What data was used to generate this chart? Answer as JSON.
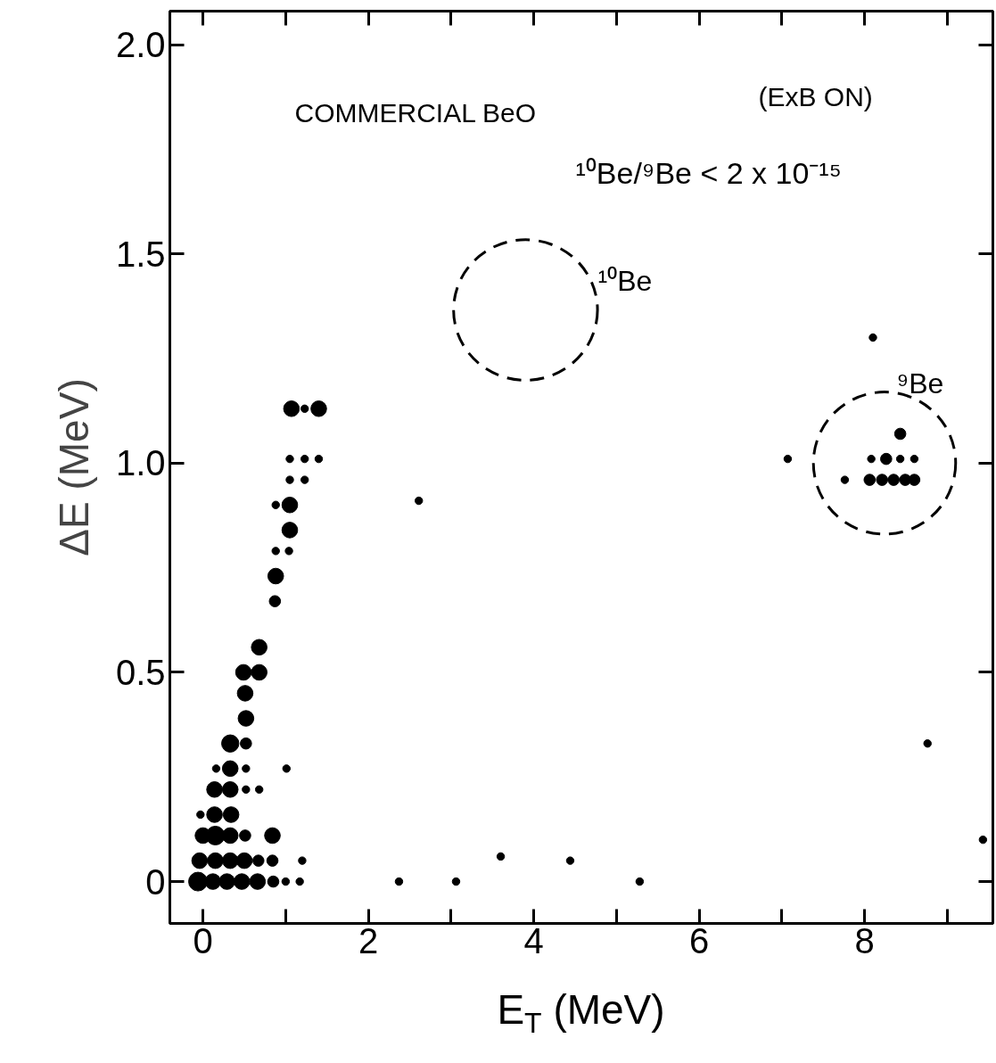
{
  "chart_data": {
    "type": "bubble",
    "xlabel": "E$_{T}$ (MeV)",
    "ylabel": "ΔE (MeV)",
    "xlim": [
      -0.4,
      9.55
    ],
    "ylim": [
      -0.1,
      2.08
    ],
    "xticks": [
      0,
      {
        "value": 1,
        "label": null
      },
      2,
      {
        "value": 3,
        "label": null
      },
      4,
      {
        "value": 5,
        "label": null
      },
      6,
      {
        "value": 7,
        "label": null
      },
      8,
      {
        "value": 9,
        "label": null
      }
    ],
    "yticks": [
      0,
      0.5,
      {
        "value": 1,
        "label": "1.0"
      },
      1.5,
      {
        "value": 2,
        "label": "2.0"
      }
    ],
    "annotations": [
      "COMMERCIAL BeO",
      "(ExB ON)",
      "¹⁰Be/⁹Be < 2 x 10⁻¹⁵",
      "¹⁰Be",
      "⁹Be"
    ],
    "series": [
      {
        "color": "#000000",
        "marker": "circle",
        "x": [
          1.07,
          1.23,
          1.4,
          1.05,
          1.23,
          1.4,
          1.05,
          1.23,
          0.88,
          1.05,
          1.05,
          0.88,
          1.04,
          0.88,
          0.87,
          0.68,
          0.49,
          0.68,
          0.51,
          0.52,
          0.33,
          0.52,
          0.16,
          0.33,
          0.52,
          1.01,
          0.14,
          0.33,
          0.52,
          0.68,
          -0.03,
          0.14,
          0.34,
          0.0,
          0.15,
          0.33,
          0.51,
          0.84,
          -0.04,
          0.15,
          0.33,
          0.5,
          0.67,
          0.84,
          1.2,
          -0.06,
          0.12,
          0.29,
          0.47,
          0.66,
          0.85,
          1.0,
          1.17,
          2.37,
          3.06,
          3.6,
          4.44,
          5.28,
          2.61,
          8.76,
          9.43,
          8.1,
          7.07,
          7.76,
          8.43,
          8.08,
          8.26,
          8.43,
          8.6,
          8.06,
          8.21,
          8.35,
          8.49,
          8.6
        ],
        "values": [
          1.13,
          1.13,
          1.13,
          1.01,
          1.01,
          1.01,
          0.96,
          0.96,
          0.9,
          0.9,
          0.84,
          0.79,
          0.79,
          0.73,
          0.67,
          0.56,
          0.5,
          0.5,
          0.45,
          0.39,
          0.33,
          0.33,
          0.27,
          0.27,
          0.27,
          0.27,
          0.22,
          0.22,
          0.22,
          0.22,
          0.16,
          0.16,
          0.16,
          0.11,
          0.11,
          0.11,
          0.11,
          0.11,
          0.05,
          0.05,
          0.05,
          0.05,
          0.05,
          0.05,
          0.05,
          0.0,
          0.0,
          0.0,
          0.0,
          0.0,
          0.0,
          0.0,
          0.0,
          0.0,
          0.0,
          0.06,
          0.05,
          0.0,
          0.91,
          0.33,
          0.1,
          1.3,
          1.01,
          0.96,
          1.07,
          1.01,
          1.01,
          1.01,
          1.01,
          0.96,
          0.96,
          0.96,
          0.96,
          0.96
        ],
        "sizes": [
          0.7,
          0.16,
          0.7,
          0.16,
          0.16,
          0.16,
          0.16,
          0.16,
          0.16,
          0.7,
          0.7,
          0.16,
          0.16,
          0.7,
          0.36,
          0.7,
          0.7,
          0.7,
          0.7,
          0.7,
          0.85,
          0.36,
          0.16,
          0.7,
          0.16,
          0.16,
          0.7,
          0.7,
          0.16,
          0.16,
          0.16,
          0.7,
          0.7,
          0.7,
          1,
          0.7,
          0.36,
          0.7,
          0.7,
          0.7,
          0.7,
          0.7,
          0.36,
          0.36,
          0.16,
          1,
          0.7,
          0.7,
          0.7,
          0.7,
          0.36,
          0.16,
          0.16,
          0.16,
          0.16,
          0.16,
          0.16,
          0.16,
          0.16,
          0.16,
          0.16,
          0.16,
          0.16,
          0.16,
          0.36,
          0.16,
          0.36,
          0.16,
          0.16,
          0.36,
          0.36,
          0.36,
          0.36,
          0.36
        ]
      }
    ]
  }
}
